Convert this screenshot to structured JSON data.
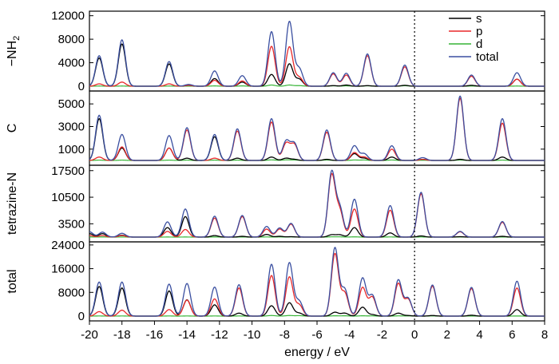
{
  "chart_data": {
    "type": "line",
    "xlabel": "energy / eV",
    "xlim": [
      -20,
      8
    ],
    "xticks": [
      -20,
      -18,
      -16,
      -14,
      -12,
      -10,
      -8,
      -6,
      -4,
      -2,
      0,
      2,
      4,
      6,
      8
    ],
    "fermi_level": 0,
    "legend": {
      "placement": "top-right",
      "entries": [
        {
          "name": "s",
          "color": "#000000"
        },
        {
          "name": "p",
          "color": "#e8292a"
        },
        {
          "name": "d",
          "color": "#36b436"
        },
        {
          "name": "total",
          "color": "#3a4fa0"
        }
      ]
    },
    "panels": [
      {
        "label": "−NH₂",
        "label_base": "−NH",
        "label_sub": "2",
        "ylim": [
          0,
          12500
        ],
        "yticks": [
          0,
          4000,
          8000,
          12000
        ],
        "width": 0.22,
        "peaks": [
          {
            "x": -19.4,
            "total": 5200,
            "s": 4800,
            "p": 400,
            "d": 30
          },
          {
            "x": -18.0,
            "total": 7900,
            "s": 7200,
            "p": 700,
            "d": 30
          },
          {
            "x": -15.1,
            "total": 4200,
            "s": 3800,
            "p": 400,
            "d": 30
          },
          {
            "x": -13.9,
            "total": 300,
            "s": 150,
            "p": 150,
            "d": 10
          },
          {
            "x": -12.3,
            "total": 2600,
            "s": 1300,
            "p": 1000,
            "d": 50
          },
          {
            "x": -10.6,
            "total": 1800,
            "s": 700,
            "p": 900,
            "d": 50
          },
          {
            "x": -8.8,
            "total": 9300,
            "s": 2000,
            "p": 6800,
            "d": 200
          },
          {
            "x": -7.7,
            "total": 11000,
            "s": 3800,
            "p": 6700,
            "d": 200
          },
          {
            "x": -7.1,
            "total": 3000,
            "s": 1200,
            "p": 1500,
            "d": 100
          },
          {
            "x": -5.0,
            "total": 2300,
            "s": 100,
            "p": 2100,
            "d": 60
          },
          {
            "x": -4.2,
            "total": 2200,
            "s": 200,
            "p": 1900,
            "d": 60
          },
          {
            "x": -2.9,
            "total": 5500,
            "s": 100,
            "p": 5200,
            "d": 60
          },
          {
            "x": -0.6,
            "total": 3600,
            "s": 150,
            "p": 3300,
            "d": 80
          },
          {
            "x": 3.5,
            "total": 1900,
            "s": 150,
            "p": 1700,
            "d": 30
          },
          {
            "x": 6.3,
            "total": 2300,
            "s": 1200,
            "p": 1200,
            "d": 30
          }
        ]
      },
      {
        "label": "C",
        "ylim": [
          0,
          6000
        ],
        "yticks": [
          1000,
          3000,
          5000
        ],
        "width": 0.22,
        "peaks": [
          {
            "x": -19.4,
            "total": 4000,
            "s": 3700,
            "p": 300,
            "d": 30
          },
          {
            "x": -18.0,
            "total": 2300,
            "s": 1100,
            "p": 1200,
            "d": 30
          },
          {
            "x": -15.1,
            "total": 2200,
            "s": 1100,
            "p": 1100,
            "d": 30
          },
          {
            "x": -14.0,
            "total": 2900,
            "s": 200,
            "p": 2700,
            "d": 30
          },
          {
            "x": -12.3,
            "total": 2300,
            "s": 2100,
            "p": 200,
            "d": 30
          },
          {
            "x": -10.9,
            "total": 2800,
            "s": 200,
            "p": 2600,
            "d": 30
          },
          {
            "x": -8.8,
            "total": 3700,
            "s": 300,
            "p": 3400,
            "d": 50
          },
          {
            "x": -7.9,
            "total": 1700,
            "s": 200,
            "p": 1500,
            "d": 50
          },
          {
            "x": -7.4,
            "total": 1500,
            "s": 100,
            "p": 1400,
            "d": 40
          },
          {
            "x": -5.4,
            "total": 2700,
            "s": 100,
            "p": 2500,
            "d": 40
          },
          {
            "x": -3.7,
            "total": 1300,
            "s": 600,
            "p": 700,
            "d": 40
          },
          {
            "x": -3.1,
            "total": 600,
            "s": 200,
            "p": 300,
            "d": 40
          },
          {
            "x": -1.4,
            "total": 1300,
            "s": 300,
            "p": 1000,
            "d": 40
          },
          {
            "x": 0.5,
            "total": 250,
            "s": 100,
            "p": 100,
            "d": 20
          },
          {
            "x": 2.8,
            "total": 5700,
            "s": 100,
            "p": 5500,
            "d": 40
          },
          {
            "x": 5.4,
            "total": 3700,
            "s": 300,
            "p": 3300,
            "d": 30
          }
        ]
      },
      {
        "label": "tetrazine-N",
        "ylim": [
          0,
          18500
        ],
        "yticks": [
          3500,
          10500,
          17500
        ],
        "width": 0.22,
        "peaks": [
          {
            "x": -20.0,
            "total": 1400,
            "s": 900,
            "p": 400,
            "d": 20
          },
          {
            "x": -19.2,
            "total": 1300,
            "s": 900,
            "p": 400,
            "d": 20
          },
          {
            "x": -18.0,
            "total": 1000,
            "s": 500,
            "p": 400,
            "d": 20
          },
          {
            "x": -15.2,
            "total": 4000,
            "s": 2500,
            "p": 1500,
            "d": 20
          },
          {
            "x": -14.1,
            "total": 7400,
            "s": 5400,
            "p": 2000,
            "d": 20
          },
          {
            "x": -12.3,
            "total": 5500,
            "s": 400,
            "p": 5000,
            "d": 20
          },
          {
            "x": -10.6,
            "total": 5700,
            "s": 200,
            "p": 5400,
            "d": 20
          },
          {
            "x": -9.1,
            "total": 2800,
            "s": 700,
            "p": 2100,
            "d": 40
          },
          {
            "x": -8.3,
            "total": 2400,
            "s": 200,
            "p": 2100,
            "d": 40
          },
          {
            "x": -7.6,
            "total": 3600,
            "s": 100,
            "p": 3400,
            "d": 40
          },
          {
            "x": -5.1,
            "total": 17000,
            "s": 600,
            "p": 16200,
            "d": 60
          },
          {
            "x": -4.6,
            "total": 7500,
            "s": 600,
            "p": 6700,
            "d": 60
          },
          {
            "x": -3.7,
            "total": 10000,
            "s": 2500,
            "p": 7400,
            "d": 60
          },
          {
            "x": -1.5,
            "total": 8300,
            "s": 1100,
            "p": 7100,
            "d": 40
          },
          {
            "x": 0.4,
            "total": 11800,
            "s": 300,
            "p": 11400,
            "d": 40
          },
          {
            "x": 2.8,
            "total": 1500,
            "s": 100,
            "p": 1400,
            "d": 20
          },
          {
            "x": 5.4,
            "total": 4100,
            "s": 200,
            "p": 3900,
            "d": 20
          }
        ]
      },
      {
        "label": "total",
        "ylim": [
          0,
          24500
        ],
        "yticks": [
          0,
          8000,
          16000,
          24000
        ],
        "width": 0.22,
        "peaks": [
          {
            "x": -19.4,
            "total": 11500,
            "s": 10000,
            "p": 1500,
            "d": 50
          },
          {
            "x": -18.0,
            "total": 11500,
            "s": 9500,
            "p": 2000,
            "d": 50
          },
          {
            "x": -15.1,
            "total": 10800,
            "s": 8500,
            "p": 2200,
            "d": 50
          },
          {
            "x": -14.0,
            "total": 11000,
            "s": 5500,
            "p": 5400,
            "d": 50
          },
          {
            "x": -12.3,
            "total": 9800,
            "s": 3800,
            "p": 5800,
            "d": 50
          },
          {
            "x": -10.8,
            "total": 10600,
            "s": 1000,
            "p": 9500,
            "d": 50
          },
          {
            "x": -8.8,
            "total": 17500,
            "s": 3500,
            "p": 13700,
            "d": 200
          },
          {
            "x": -7.7,
            "total": 18000,
            "s": 4500,
            "p": 13200,
            "d": 200
          },
          {
            "x": -7.1,
            "total": 5000,
            "s": 1000,
            "p": 3800,
            "d": 150
          },
          {
            "x": -4.9,
            "total": 23000,
            "s": 1300,
            "p": 21000,
            "d": 100
          },
          {
            "x": -4.3,
            "total": 9000,
            "s": 1000,
            "p": 7800,
            "d": 100
          },
          {
            "x": -3.2,
            "total": 12800,
            "s": 3000,
            "p": 9600,
            "d": 100
          },
          {
            "x": -2.6,
            "total": 7000,
            "s": 500,
            "p": 6400,
            "d": 80
          },
          {
            "x": -1.0,
            "total": 12200,
            "s": 1000,
            "p": 11000,
            "d": 80
          },
          {
            "x": -0.4,
            "total": 6000,
            "s": 200,
            "p": 5700,
            "d": 60
          },
          {
            "x": 1.1,
            "total": 10500,
            "s": 200,
            "p": 10100,
            "d": 60
          },
          {
            "x": 3.5,
            "total": 9700,
            "s": 300,
            "p": 9300,
            "d": 40
          },
          {
            "x": 6.3,
            "total": 11800,
            "s": 2200,
            "p": 9500,
            "d": 40
          }
        ]
      }
    ]
  }
}
